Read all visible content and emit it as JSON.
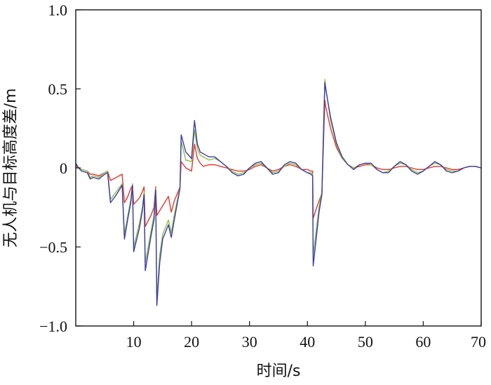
{
  "chart_data": {
    "type": "line",
    "title": "",
    "xlabel": "时间/s",
    "ylabel": "无人机与目标高度差/m",
    "xlim": [
      0,
      70
    ],
    "ylim": [
      -1.0,
      1.0
    ],
    "xticks": [
      10,
      20,
      30,
      40,
      50,
      60,
      70
    ],
    "xtick_labels": [
      "10",
      "20",
      "30",
      "40",
      "50",
      "60",
      "70"
    ],
    "yticks": [
      -1.0,
      -0.5,
      0,
      0.5,
      1.0
    ],
    "ytick_labels": [
      "−1.0",
      "−0.5",
      "0",
      "0.5",
      "1.0"
    ],
    "grid": false,
    "legend": "none",
    "series": [
      {
        "color": "#e8352b",
        "x": [
          0,
          0.5,
          1,
          2,
          2.5,
          3,
          4,
          5,
          5.5,
          6,
          7,
          8,
          8.4,
          9,
          9.5,
          9.8,
          10,
          11,
          11.5,
          11.8,
          12,
          13,
          13.5,
          13.8,
          14,
          14.5,
          15,
          16,
          16.5,
          17,
          18,
          18.2,
          19,
          20,
          20.5,
          21,
          21.5,
          22,
          23,
          24,
          25,
          26,
          27,
          28,
          29,
          30,
          31,
          32,
          33,
          34,
          35,
          36,
          37,
          38,
          39,
          40,
          40.6,
          40.9,
          41,
          41.5,
          42,
          42.5,
          43,
          43.2,
          44,
          45,
          46,
          47,
          48,
          49,
          50,
          51,
          52,
          53,
          54,
          55,
          56,
          57,
          58,
          59,
          60,
          61,
          62,
          63,
          64,
          65,
          66,
          67,
          68,
          69,
          70
        ],
        "y": [
          0.01,
          0.0,
          -0.01,
          -0.02,
          -0.04,
          -0.04,
          -0.05,
          -0.03,
          -0.02,
          -0.08,
          -0.06,
          -0.04,
          -0.22,
          -0.18,
          -0.13,
          -0.11,
          -0.23,
          -0.19,
          -0.15,
          -0.12,
          -0.37,
          -0.3,
          -0.25,
          -0.12,
          -0.3,
          -0.27,
          -0.24,
          -0.18,
          -0.28,
          -0.21,
          -0.12,
          0.04,
          0.0,
          -0.02,
          0.15,
          0.06,
          0.03,
          0.01,
          0.02,
          0.02,
          0.01,
          0.0,
          -0.01,
          -0.02,
          -0.02,
          -0.01,
          0.01,
          0.02,
          0.0,
          -0.02,
          -0.01,
          0.01,
          0.02,
          0.01,
          -0.01,
          -0.01,
          -0.02,
          -0.02,
          -0.32,
          -0.26,
          -0.21,
          -0.16,
          0.43,
          0.38,
          0.25,
          0.13,
          0.06,
          0.02,
          0.0,
          0.01,
          0.02,
          0.02,
          0.0,
          -0.01,
          -0.01,
          0.0,
          0.01,
          0.01,
          0.0,
          -0.01,
          -0.01,
          0.0,
          0.01,
          0.01,
          0.0,
          -0.01,
          -0.01,
          0.0,
          0.01,
          0.01,
          0.0
        ]
      },
      {
        "color": "#8fbf3f",
        "x": [
          0,
          0.5,
          1,
          2,
          2.5,
          3,
          4,
          5,
          5.5,
          6,
          7,
          8,
          8.4,
          9,
          9.5,
          9.8,
          10,
          11,
          11.5,
          11.8,
          12,
          13,
          13.5,
          13.8,
          14,
          14.5,
          15,
          16,
          16.5,
          17,
          18,
          18.2,
          19,
          20,
          20.5,
          21,
          21.5,
          22,
          23,
          24,
          25,
          26,
          27,
          28,
          29,
          30,
          31,
          32,
          33,
          34,
          35,
          36,
          37,
          38,
          39,
          40,
          40.6,
          40.9,
          41,
          41.5,
          42,
          42.5,
          43,
          43.2,
          44,
          45,
          46,
          47,
          48,
          49,
          50,
          51,
          52,
          53,
          54,
          55,
          56,
          57,
          58,
          59,
          60,
          61,
          62,
          63,
          64,
          65,
          66,
          67,
          68,
          69,
          70
        ],
        "y": [
          0.02,
          0.0,
          -0.01,
          -0.02,
          -0.06,
          -0.05,
          -0.06,
          -0.03,
          -0.02,
          -0.2,
          -0.15,
          -0.1,
          -0.42,
          -0.3,
          -0.2,
          -0.1,
          -0.5,
          -0.35,
          -0.25,
          -0.15,
          -0.6,
          -0.4,
          -0.3,
          -0.13,
          -0.82,
          -0.55,
          -0.42,
          -0.33,
          -0.41,
          -0.3,
          -0.12,
          0.17,
          0.05,
          0.04,
          0.24,
          0.12,
          0.08,
          0.07,
          0.05,
          0.06,
          0.04,
          0.01,
          -0.02,
          -0.04,
          -0.03,
          0.0,
          0.02,
          0.03,
          0.0,
          -0.03,
          -0.02,
          0.01,
          0.03,
          0.02,
          -0.01,
          -0.03,
          -0.03,
          -0.04,
          -0.55,
          -0.4,
          -0.25,
          -0.15,
          0.56,
          0.5,
          0.3,
          0.15,
          0.06,
          0.02,
          0.0,
          0.02,
          0.03,
          0.02,
          -0.01,
          -0.03,
          -0.02,
          0.01,
          0.03,
          0.02,
          -0.01,
          -0.03,
          -0.02,
          0.01,
          0.03,
          0.02,
          -0.01,
          -0.02,
          -0.02,
          0.0,
          0.01,
          0.01,
          0.0
        ]
      },
      {
        "color": "#3a3cb0",
        "x": [
          0,
          0.5,
          1,
          2,
          2.5,
          3,
          4,
          5,
          5.5,
          6,
          7,
          8,
          8.4,
          9,
          9.5,
          9.8,
          10,
          11,
          11.5,
          11.8,
          12,
          13,
          13.5,
          13.8,
          14,
          14.5,
          15,
          16,
          16.5,
          17,
          18,
          18.2,
          19,
          20,
          20.5,
          21,
          21.5,
          22,
          23,
          24,
          25,
          26,
          27,
          28,
          29,
          30,
          31,
          32,
          33,
          34,
          35,
          36,
          37,
          38,
          39,
          40,
          40.6,
          40.9,
          41,
          41.5,
          42,
          42.5,
          43,
          43.2,
          44,
          45,
          46,
          47,
          48,
          49,
          50,
          51,
          52,
          53,
          54,
          55,
          56,
          57,
          58,
          59,
          60,
          61,
          62,
          63,
          64,
          65,
          66,
          67,
          68,
          69,
          70
        ],
        "y": [
          0.03,
          0.0,
          -0.02,
          -0.03,
          -0.07,
          -0.06,
          -0.07,
          -0.04,
          -0.03,
          -0.22,
          -0.17,
          -0.11,
          -0.45,
          -0.32,
          -0.22,
          -0.11,
          -0.53,
          -0.38,
          -0.27,
          -0.17,
          -0.65,
          -0.43,
          -0.33,
          -0.14,
          -0.87,
          -0.6,
          -0.45,
          -0.36,
          -0.44,
          -0.33,
          -0.13,
          0.21,
          0.1,
          0.06,
          0.3,
          0.15,
          0.1,
          0.09,
          0.07,
          0.07,
          0.04,
          0.01,
          -0.03,
          -0.05,
          -0.04,
          0.0,
          0.03,
          0.04,
          0.0,
          -0.04,
          -0.03,
          0.02,
          0.04,
          0.03,
          -0.01,
          -0.03,
          -0.04,
          -0.05,
          -0.62,
          -0.45,
          -0.28,
          -0.17,
          0.54,
          0.49,
          0.32,
          0.16,
          0.07,
          0.02,
          -0.01,
          0.02,
          0.03,
          0.03,
          -0.01,
          -0.03,
          -0.03,
          0.01,
          0.04,
          0.02,
          -0.02,
          -0.04,
          -0.02,
          0.01,
          0.04,
          0.02,
          -0.02,
          -0.03,
          -0.02,
          0.0,
          0.01,
          0.01,
          0.0
        ]
      }
    ]
  }
}
